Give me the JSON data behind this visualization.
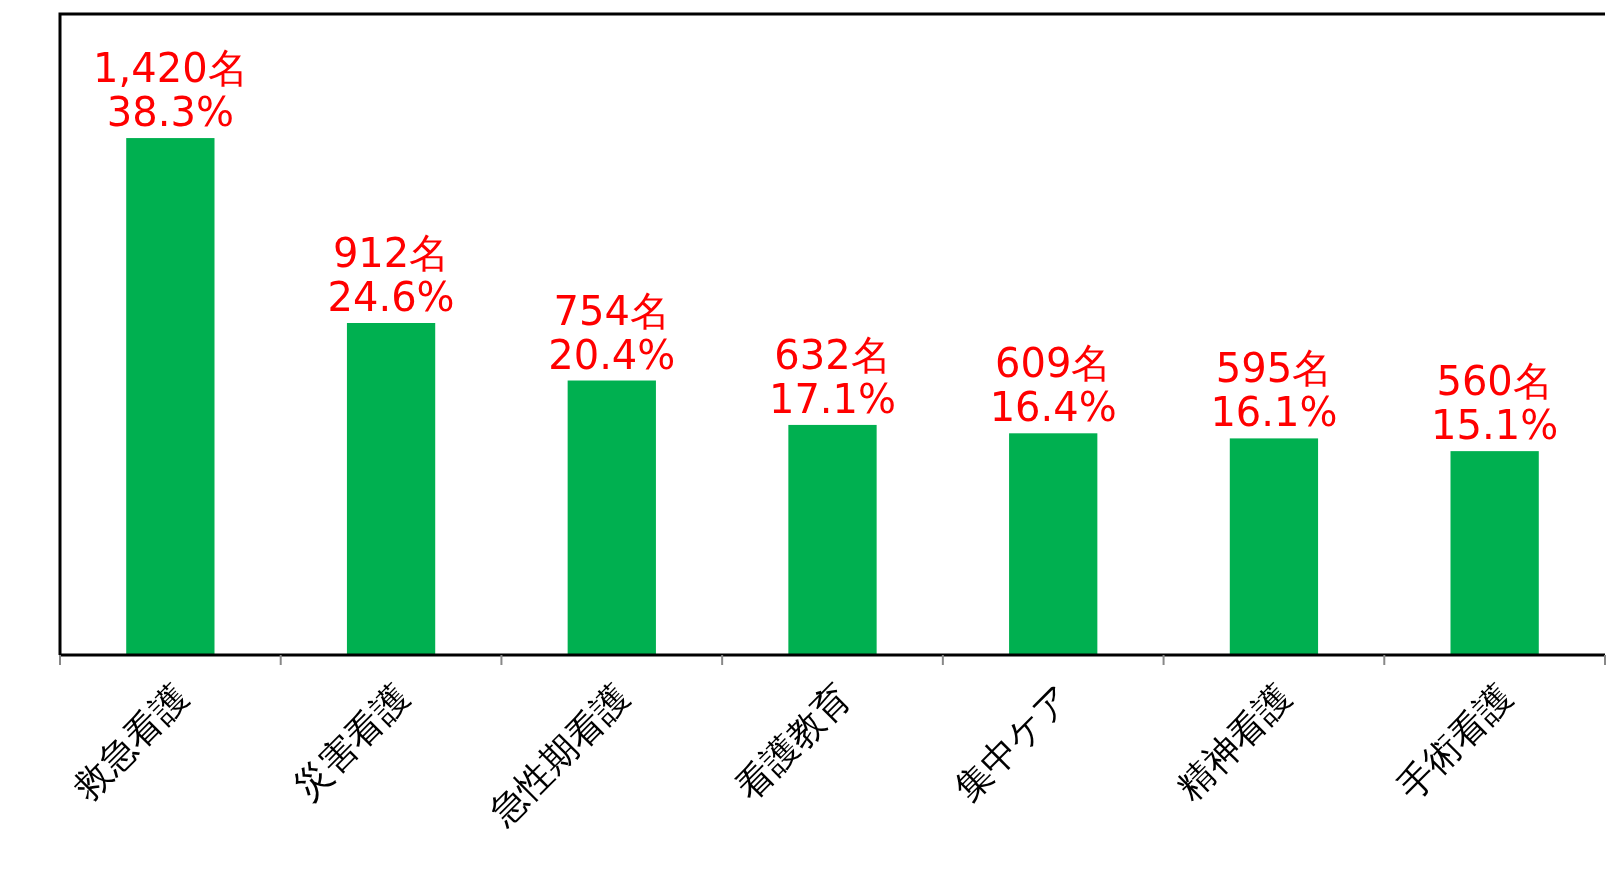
{
  "chart_data": {
    "type": "bar",
    "categories": [
      "救急看護",
      "災害看護",
      "急性期看護",
      "看護教育",
      "集中ケア",
      "精神看護",
      "手術看護"
    ],
    "values": [
      1420,
      912,
      754,
      632,
      609,
      595,
      560
    ],
    "color": "#00b050",
    "value_labels": [
      "1,420名\n38.3%",
      "912名\n24.6%",
      "754名\n20.4%",
      "632名\n17.1%",
      "609名\n16.4%",
      "595名\n16.1%",
      "560名\n15.1%"
    ]
  }
}
